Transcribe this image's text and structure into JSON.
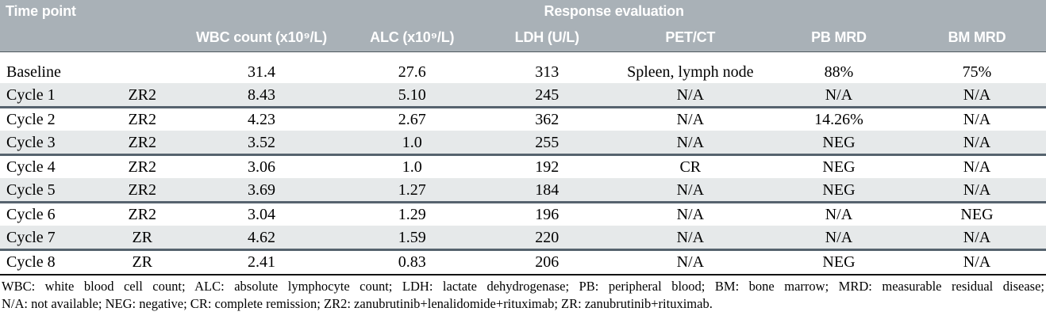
{
  "colors": {
    "header_bg": "#a9b1b7",
    "header_text": "#ffffff",
    "stripe_bg": "#e6e9ea",
    "group_separator": "#56636e",
    "footnote_rule": "#121212",
    "body_text": "#000000"
  },
  "table": {
    "header": {
      "time_point_label": "Time point",
      "response_evaluation_label": "Response evaluation",
      "columns": [
        "WBC count (x10⁹/L)",
        "ALC (x10⁹/L)",
        "LDH (U/L)",
        "PET/CT",
        "PB MRD",
        "BM MRD"
      ]
    },
    "rows": [
      {
        "time_point": "Baseline",
        "regimen": "",
        "wbc": "31.4",
        "alc": "27.6",
        "ldh": "313",
        "pet_ct": "Spleen, lymph node",
        "pb_mrd": "88%",
        "bm_mrd": "75%",
        "stripe": false,
        "group_end": false
      },
      {
        "time_point": "Cycle 1",
        "regimen": "ZR2",
        "wbc": "8.43",
        "alc": "5.10",
        "ldh": "245",
        "pet_ct": "N/A",
        "pb_mrd": "N/A",
        "bm_mrd": "N/A",
        "stripe": true,
        "group_end": true
      },
      {
        "time_point": "Cycle 2",
        "regimen": "ZR2",
        "wbc": "4.23",
        "alc": "2.67",
        "ldh": "362",
        "pet_ct": "N/A",
        "pb_mrd": "14.26%",
        "bm_mrd": "N/A",
        "stripe": false,
        "group_end": false
      },
      {
        "time_point": "Cycle 3",
        "regimen": "ZR2",
        "wbc": "3.52",
        "alc": "1.0",
        "ldh": "255",
        "pet_ct": "N/A",
        "pb_mrd": "NEG",
        "bm_mrd": "N/A",
        "stripe": true,
        "group_end": true
      },
      {
        "time_point": "Cycle 4",
        "regimen": "ZR2",
        "wbc": "3.06",
        "alc": "1.0",
        "ldh": "192",
        "pet_ct": "CR",
        "pb_mrd": "NEG",
        "bm_mrd": "N/A",
        "stripe": false,
        "group_end": false
      },
      {
        "time_point": "Cycle 5",
        "regimen": "ZR2",
        "wbc": "3.69",
        "alc": "1.27",
        "ldh": "184",
        "pet_ct": "N/A",
        "pb_mrd": "NEG",
        "bm_mrd": "N/A",
        "stripe": true,
        "group_end": true
      },
      {
        "time_point": "Cycle 6",
        "regimen": "ZR2",
        "wbc": "3.04",
        "alc": "1.29",
        "ldh": "196",
        "pet_ct": "N/A",
        "pb_mrd": "N/A",
        "bm_mrd": "NEG",
        "stripe": false,
        "group_end": false
      },
      {
        "time_point": "Cycle 7",
        "regimen": "ZR",
        "wbc": "4.62",
        "alc": "1.59",
        "ldh": "220",
        "pet_ct": "N/A",
        "pb_mrd": "N/A",
        "bm_mrd": "N/A",
        "stripe": true,
        "group_end": true
      },
      {
        "time_point": "Cycle 8",
        "regimen": "ZR",
        "wbc": "2.41",
        "alc": "0.83",
        "ldh": "206",
        "pet_ct": "N/A",
        "pb_mrd": "NEG",
        "bm_mrd": "N/A",
        "stripe": false,
        "group_end": false
      }
    ],
    "footnote_line1": "WBC: white blood cell count; ALC: absolute lymphocyte count; LDH: lactate dehydrogenase; PB: peripheral blood; BM: bone marrow; MRD: measurable residual disease;",
    "footnote_line2": "N/A: not available; NEG: negative; CR: complete remission; ZR2: zanubrutinib+lenalidomide+rituximab; ZR: zanubrutinib+rituximab."
  }
}
